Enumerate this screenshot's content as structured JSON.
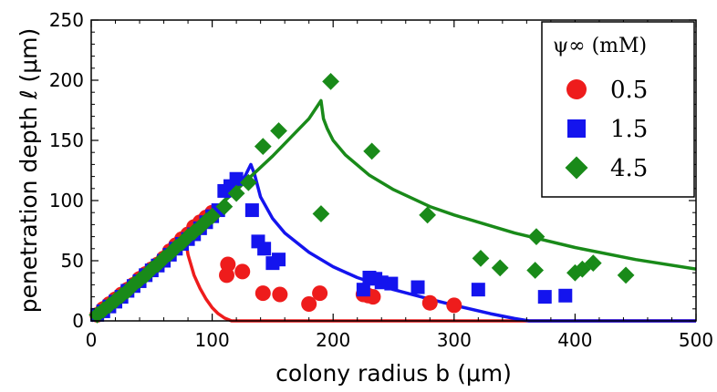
{
  "chart_data": {
    "type": "scatter",
    "xlabel": "colony radius b (μm)",
    "ylabel": "penetration depth ℓ (μm)",
    "xlim": [
      0,
      500
    ],
    "ylim": [
      0,
      250
    ],
    "xticks": [
      0,
      100,
      200,
      300,
      400,
      500
    ],
    "yticks": [
      0,
      50,
      100,
      150,
      200,
      250
    ],
    "grid": false,
    "legend": {
      "title": "ψ∞ (mM)",
      "placement": "top-right",
      "entries": [
        "0.5",
        "1.5",
        "4.5"
      ]
    },
    "series": [
      {
        "name": "0.5",
        "marker": "circle",
        "color": "#ee1c1c",
        "points": [
          [
            5,
            5
          ],
          [
            10,
            10
          ],
          [
            15,
            14
          ],
          [
            20,
            18
          ],
          [
            25,
            22
          ],
          [
            30,
            26
          ],
          [
            35,
            30
          ],
          [
            40,
            35
          ],
          [
            45,
            39
          ],
          [
            50,
            43
          ],
          [
            55,
            47
          ],
          [
            60,
            52
          ],
          [
            65,
            58
          ],
          [
            70,
            63
          ],
          [
            75,
            68
          ],
          [
            80,
            72
          ],
          [
            85,
            78
          ],
          [
            90,
            82
          ],
          [
            95,
            86
          ],
          [
            100,
            90
          ],
          [
            112,
            38
          ],
          [
            113,
            47
          ],
          [
            125,
            41
          ],
          [
            142,
            23
          ],
          [
            156,
            22
          ],
          [
            180,
            14
          ],
          [
            189,
            23
          ],
          [
            225,
            22
          ],
          [
            229,
            21
          ],
          [
            233,
            20
          ],
          [
            280,
            15
          ],
          [
            300,
            13
          ]
        ],
        "curve": [
          [
            0,
            0
          ],
          [
            20,
            17.5
          ],
          [
            40,
            35
          ],
          [
            60,
            52.5
          ],
          [
            70,
            61
          ],
          [
            75,
            66
          ],
          [
            78,
            68
          ],
          [
            80,
            55
          ],
          [
            85,
            38
          ],
          [
            90,
            27
          ],
          [
            95,
            18
          ],
          [
            100,
            11
          ],
          [
            105,
            6
          ],
          [
            110,
            2.5
          ],
          [
            116,
            0
          ],
          [
            500,
            0
          ]
        ]
      },
      {
        "name": "1.5",
        "marker": "square",
        "color": "#1414ee",
        "points": [
          [
            5,
            5
          ],
          [
            10,
            8
          ],
          [
            15,
            12
          ],
          [
            20,
            16
          ],
          [
            25,
            20
          ],
          [
            30,
            25
          ],
          [
            35,
            29
          ],
          [
            40,
            33
          ],
          [
            45,
            38
          ],
          [
            50,
            42
          ],
          [
            55,
            46
          ],
          [
            60,
            50
          ],
          [
            65,
            55
          ],
          [
            70,
            60
          ],
          [
            75,
            64
          ],
          [
            80,
            68
          ],
          [
            85,
            72
          ],
          [
            90,
            77
          ],
          [
            95,
            82
          ],
          [
            100,
            87
          ],
          [
            105,
            92
          ],
          [
            110,
            108
          ],
          [
            115,
            112
          ],
          [
            120,
            118
          ],
          [
            133,
            92
          ],
          [
            138,
            66
          ],
          [
            143,
            60
          ],
          [
            150,
            48
          ],
          [
            155,
            51
          ],
          [
            225,
            26
          ],
          [
            230,
            36
          ],
          [
            235,
            35
          ],
          [
            240,
            32
          ],
          [
            248,
            31
          ],
          [
            270,
            28
          ],
          [
            320,
            26
          ],
          [
            375,
            20
          ],
          [
            392,
            21
          ]
        ],
        "curve": [
          [
            0,
            0
          ],
          [
            40,
            35
          ],
          [
            80,
            70
          ],
          [
            110,
            100
          ],
          [
            125,
            116
          ],
          [
            132,
            130
          ],
          [
            135,
            122
          ],
          [
            140,
            103
          ],
          [
            150,
            85
          ],
          [
            160,
            73
          ],
          [
            180,
            57
          ],
          [
            200,
            45
          ],
          [
            220,
            36
          ],
          [
            250,
            26
          ],
          [
            280,
            18
          ],
          [
            300,
            13
          ],
          [
            330,
            6
          ],
          [
            350,
            2
          ],
          [
            362,
            0
          ],
          [
            500,
            0
          ]
        ]
      },
      {
        "name": "4.5",
        "marker": "diamond",
        "color": "#198a19",
        "points": [
          [
            5,
            5
          ],
          [
            10,
            9
          ],
          [
            15,
            13
          ],
          [
            20,
            17
          ],
          [
            25,
            21
          ],
          [
            30,
            25
          ],
          [
            35,
            30
          ],
          [
            40,
            34
          ],
          [
            45,
            38
          ],
          [
            50,
            43
          ],
          [
            55,
            47
          ],
          [
            60,
            52
          ],
          [
            65,
            56
          ],
          [
            70,
            61
          ],
          [
            75,
            65
          ],
          [
            80,
            70
          ],
          [
            85,
            74
          ],
          [
            90,
            78
          ],
          [
            95,
            83
          ],
          [
            100,
            87
          ],
          [
            110,
            95
          ],
          [
            120,
            106
          ],
          [
            130,
            115
          ],
          [
            142,
            145
          ],
          [
            155,
            158
          ],
          [
            190,
            89
          ],
          [
            198,
            199
          ],
          [
            232,
            141
          ],
          [
            278,
            88
          ],
          [
            322,
            52
          ],
          [
            338,
            44
          ],
          [
            368,
            70
          ],
          [
            367,
            42
          ],
          [
            400,
            40
          ],
          [
            406,
            43
          ],
          [
            415,
            48
          ],
          [
            442,
            38
          ]
        ],
        "curve": [
          [
            0,
            0
          ],
          [
            50,
            45
          ],
          [
            100,
            90
          ],
          [
            150,
            137
          ],
          [
            180,
            168
          ],
          [
            190,
            183
          ],
          [
            192,
            168
          ],
          [
            195,
            160
          ],
          [
            200,
            150
          ],
          [
            210,
            138
          ],
          [
            230,
            121
          ],
          [
            250,
            109
          ],
          [
            280,
            95
          ],
          [
            300,
            88
          ],
          [
            350,
            73
          ],
          [
            400,
            61
          ],
          [
            450,
            51
          ],
          [
            500,
            43
          ]
        ]
      }
    ]
  }
}
